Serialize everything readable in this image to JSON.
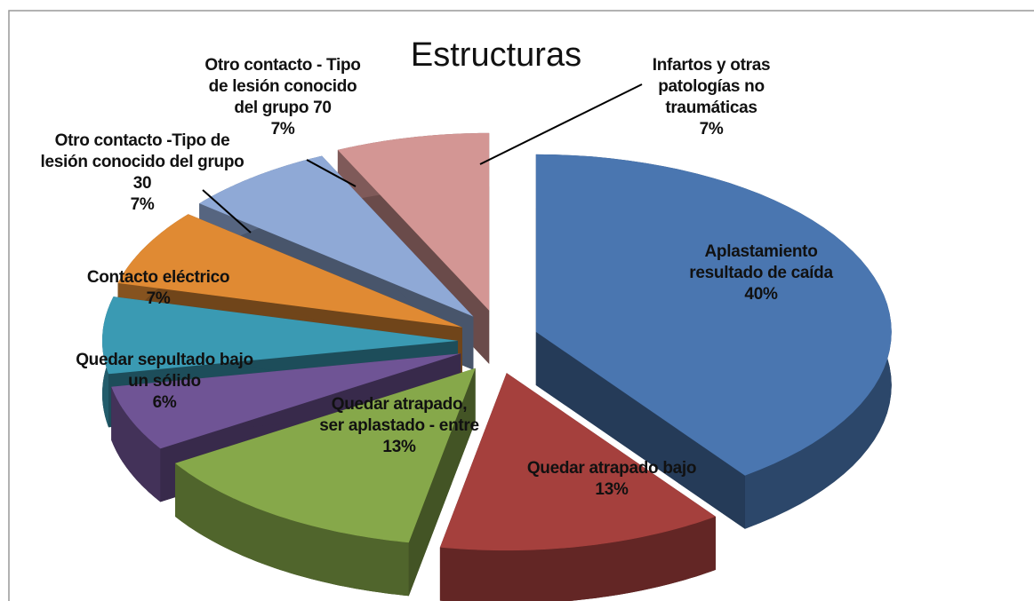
{
  "chart_data": {
    "type": "pie3d",
    "title": "Estructuras",
    "categories": [
      "Aplastamiento resultado de caída",
      "Quedar atrapado bajo",
      "Quedar atrapado, ser aplastado - entre",
      "Quedar sepultado bajo un sólido",
      "Contacto eléctrico",
      "Otro contacto -Tipo de lesión conocido del grupo 30",
      "Otro contacto - Tipo de lesión conocido del grupo 70",
      "Infartos y otras patologías no traumáticas"
    ],
    "values": [
      40,
      13,
      13,
      6,
      7,
      7,
      7,
      7
    ],
    "value_labels": [
      "40%",
      "13%",
      "13%",
      "6%",
      "7%",
      "7%",
      "7%",
      "7%"
    ],
    "colors": [
      "#4a76b0",
      "#a5403d",
      "#86a84a",
      "#6f5495",
      "#3a9ab3",
      "#e08a33",
      "#8fa9d6",
      "#d39694"
    ]
  }
}
